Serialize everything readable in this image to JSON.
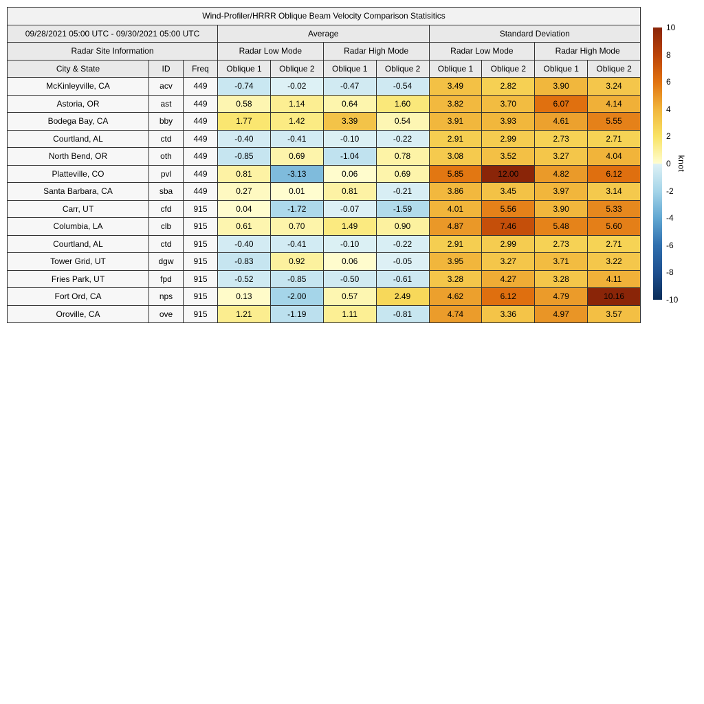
{
  "title": "Wind-Profiler/HRRR Oblique Beam Velocity Comparison Statisitics",
  "header": {
    "date_range": "09/28/2021 05:00 UTC - 09/30/2021 05:00 UTC",
    "group_average": "Average",
    "group_std": "Standard Deviation",
    "site_info": "Radar Site Information",
    "modes": [
      "Radar Low Mode",
      "Radar High Mode",
      "Radar Low Mode",
      "Radar High Mode"
    ],
    "col_city": "City & State",
    "col_id": "ID",
    "col_freq": "Freq",
    "oblique": [
      "Oblique 1",
      "Oblique 2",
      "Oblique 1",
      "Oblique 2",
      "Oblique 1",
      "Oblique 2",
      "Oblique 1",
      "Oblique 2"
    ]
  },
  "chart_data": {
    "type": "heatmap",
    "title": "Wind-Profiler/HRRR Oblique Beam Velocity Comparison Statisitics",
    "period": "09/28/2021 05:00 UTC - 09/30/2021 05:00 UTC",
    "unit": "knot",
    "color_range": [
      -10,
      10
    ],
    "value_columns": [
      "Average Radar Low Mode Oblique 1",
      "Average Radar Low Mode Oblique 2",
      "Average Radar High Mode Oblique 1",
      "Average Radar High Mode Oblique 2",
      "Standard Deviation Radar Low Mode Oblique 1",
      "Standard Deviation Radar Low Mode Oblique 2",
      "Standard Deviation Radar High Mode Oblique 1",
      "Standard Deviation Radar High Mode Oblique 2"
    ],
    "rows": [
      {
        "city": "McKinleyville, CA",
        "id": "acv",
        "freq": "449",
        "values": [
          -0.74,
          -0.02,
          -0.47,
          -0.54,
          3.49,
          2.82,
          3.9,
          3.24
        ]
      },
      {
        "city": "Astoria, OR",
        "id": "ast",
        "freq": "449",
        "values": [
          0.58,
          1.14,
          0.64,
          1.6,
          3.82,
          3.7,
          6.07,
          4.14
        ]
      },
      {
        "city": "Bodega Bay, CA",
        "id": "bby",
        "freq": "449",
        "values": [
          1.77,
          1.42,
          3.39,
          0.54,
          3.91,
          3.93,
          4.61,
          5.55
        ]
      },
      {
        "city": "Courtland, AL",
        "id": "ctd",
        "freq": "449",
        "values": [
          -0.4,
          -0.41,
          -0.1,
          -0.22,
          2.91,
          2.99,
          2.73,
          2.71
        ]
      },
      {
        "city": "North Bend, OR",
        "id": "oth",
        "freq": "449",
        "values": [
          -0.85,
          0.69,
          -1.04,
          0.78,
          3.08,
          3.52,
          3.27,
          4.04
        ]
      },
      {
        "city": "Platteville, CO",
        "id": "pvl",
        "freq": "449",
        "values": [
          0.81,
          -3.13,
          0.06,
          0.69,
          5.85,
          12.0,
          4.82,
          6.12
        ]
      },
      {
        "city": "Santa Barbara, CA",
        "id": "sba",
        "freq": "449",
        "values": [
          0.27,
          0.01,
          0.81,
          -0.21,
          3.86,
          3.45,
          3.97,
          3.14
        ]
      },
      {
        "city": "Carr, UT",
        "id": "cfd",
        "freq": "915",
        "values": [
          0.04,
          -1.72,
          -0.07,
          -1.59,
          4.01,
          5.56,
          3.9,
          5.33
        ]
      },
      {
        "city": "Columbia, LA",
        "id": "clb",
        "freq": "915",
        "values": [
          0.61,
          0.7,
          1.49,
          0.9,
          4.87,
          7.46,
          5.48,
          5.6
        ]
      },
      {
        "city": "Courtland, AL",
        "id": "ctd",
        "freq": "915",
        "values": [
          -0.4,
          -0.41,
          -0.1,
          -0.22,
          2.91,
          2.99,
          2.73,
          2.71
        ]
      },
      {
        "city": "Tower Grid, UT",
        "id": "dgw",
        "freq": "915",
        "values": [
          -0.83,
          0.92,
          0.06,
          -0.05,
          3.95,
          3.27,
          3.71,
          3.22
        ]
      },
      {
        "city": "Fries Park, UT",
        "id": "fpd",
        "freq": "915",
        "values": [
          -0.52,
          -0.85,
          -0.5,
          -0.61,
          3.28,
          4.27,
          3.28,
          4.11
        ]
      },
      {
        "city": "Fort Ord, CA",
        "id": "nps",
        "freq": "915",
        "values": [
          0.13,
          -2.0,
          0.57,
          2.49,
          4.62,
          6.12,
          4.79,
          10.16
        ]
      },
      {
        "city": "Oroville, CA",
        "id": "ove",
        "freq": "915",
        "values": [
          1.21,
          -1.19,
          1.11,
          -0.81,
          4.74,
          3.36,
          4.97,
          3.57
        ]
      }
    ]
  },
  "colorbar": {
    "label": "knot",
    "min": -10,
    "max": 10,
    "ticks": [
      "10",
      "8",
      "6",
      "4",
      "2",
      "0",
      "-2",
      "-4",
      "-6",
      "-8",
      "-10"
    ],
    "positive_stops": [
      [
        0,
        "#fffdd0"
      ],
      [
        2,
        "#f9e364"
      ],
      [
        4,
        "#f1b53b"
      ],
      [
        6,
        "#e1720f"
      ],
      [
        8,
        "#ba4208"
      ],
      [
        10,
        "#8a2508"
      ]
    ],
    "negative_stops": [
      [
        0,
        "#def1f5"
      ],
      [
        2,
        "#a5d5e9"
      ],
      [
        4,
        "#61a7d2"
      ],
      [
        6,
        "#2f6fae"
      ],
      [
        8,
        "#1d4f8f"
      ],
      [
        10,
        "#0a2d5a"
      ]
    ]
  }
}
